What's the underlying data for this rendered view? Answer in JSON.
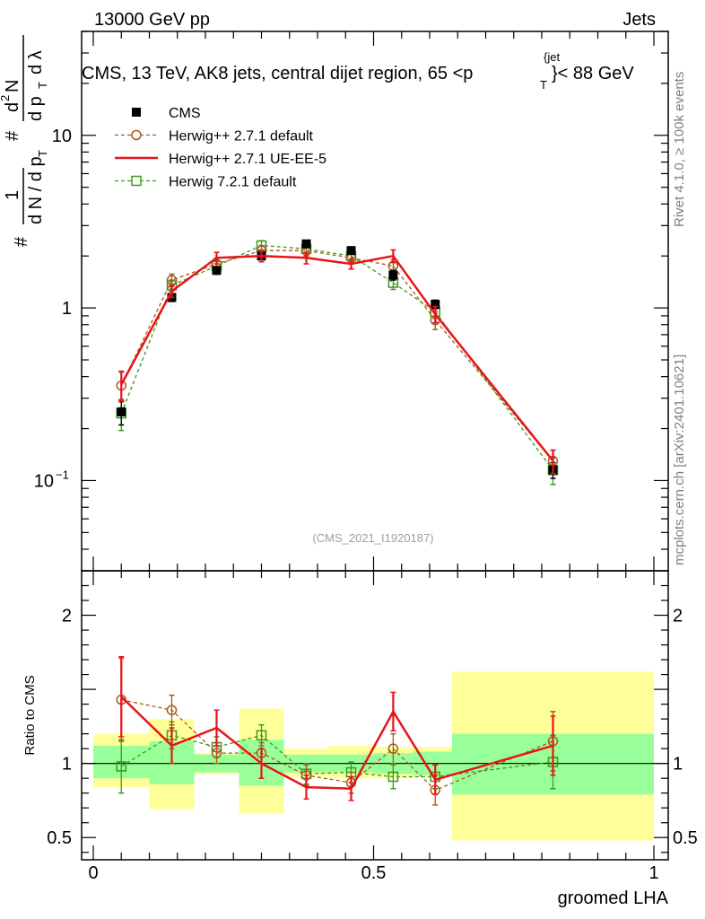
{
  "header": {
    "energy": "13000 GeV pp",
    "category": "Jets",
    "title_main": "CMS, 13 TeV, AK8 jets, central dijet region, 65 <p",
    "title_sub": "T",
    "title_sup": "{jet",
    "title_end": "}< 88 GeV",
    "analysis_id": "(CMS_2021_I1920187)"
  },
  "side_labels": {
    "rivet": "Rivet 4.1.0, ≥ 100k events",
    "mcplots": "mcplots.cern.ch [arXiv:2401.10621]"
  },
  "y_axis_label": {
    "hash": "#",
    "one": "1",
    "dN": "d N / d p",
    "dN_sub": "T",
    "d2": "d",
    "d2_sup": "2",
    "N": "N",
    "dpt": "d p",
    "dpt_sub": "T",
    "dlam": "d λ"
  },
  "chart_data": [
    {
      "type": "line",
      "panel": "main",
      "yscale": "log",
      "ylim": [
        0.03,
        40
      ],
      "xlim": [
        -0.02,
        1.0
      ],
      "yticks": [
        {
          "v": 0.1,
          "label": "10",
          "exp": "−1"
        },
        {
          "v": 1,
          "label": "1"
        },
        {
          "v": 10,
          "label": "10"
        }
      ],
      "x": [
        0.05,
        0.14,
        0.22,
        0.3,
        0.38,
        0.46,
        0.535,
        0.61,
        0.82
      ],
      "series": [
        {
          "name": "CMS",
          "style": "data",
          "color": "#000000",
          "values": [
            0.25,
            1.15,
            1.65,
            2.0,
            2.35,
            2.15,
            1.55,
            1.05,
            0.115
          ],
          "err": [
            0.04,
            0.06,
            0.08,
            0.09,
            0.1,
            0.1,
            0.1,
            0.06,
            0.012
          ]
        },
        {
          "name": "Herwig++ 2.7.1 default",
          "style": "circle-dash",
          "color": "#a65a1a",
          "values": [
            0.355,
            1.45,
            1.8,
            2.15,
            2.15,
            1.95,
            1.75,
            0.85,
            0.13
          ],
          "err": [
            0.07,
            0.12,
            0.15,
            0.15,
            0.15,
            0.15,
            0.15,
            0.1,
            0.02
          ]
        },
        {
          "name": "Herwig++ 2.7.1 UE-EE-5",
          "style": "solid",
          "color": "#e8141a",
          "values": [
            0.36,
            1.25,
            1.95,
            2.0,
            1.95,
            1.8,
            2.0,
            0.92,
            0.13
          ],
          "err": [
            0.07,
            0.1,
            0.15,
            0.15,
            0.15,
            0.12,
            0.17,
            0.1,
            0.02
          ]
        },
        {
          "name": "Herwig 7.2.1 default",
          "style": "square-dash",
          "color": "#3a9a1a",
          "values": [
            0.245,
            1.35,
            1.75,
            2.3,
            2.2,
            2.0,
            1.4,
            0.95,
            0.115
          ],
          "err": [
            0.05,
            0.1,
            0.12,
            0.15,
            0.15,
            0.13,
            0.12,
            0.08,
            0.02
          ]
        }
      ]
    },
    {
      "type": "line",
      "panel": "ratio",
      "ylabel": "Ratio to CMS",
      "xlabel": "groomed LHA",
      "ylim": [
        0.35,
        2.3
      ],
      "xlim": [
        -0.02,
        1.0
      ],
      "yticks": [
        {
          "v": 0.5,
          "label": "0.5"
        },
        {
          "v": 1,
          "label": "1"
        },
        {
          "v": 2,
          "label": "2"
        }
      ],
      "xticks": [
        {
          "v": 0,
          "label": "0"
        },
        {
          "v": 0.5,
          "label": "0.5"
        },
        {
          "v": 1,
          "label": "1"
        }
      ],
      "bins": [
        [
          0.0,
          0.1
        ],
        [
          0.1,
          0.18
        ],
        [
          0.18,
          0.26
        ],
        [
          0.26,
          0.34
        ],
        [
          0.34,
          0.42
        ],
        [
          0.42,
          0.5
        ],
        [
          0.5,
          0.57
        ],
        [
          0.57,
          0.64
        ],
        [
          0.64,
          1.0
        ]
      ],
      "band_green": [
        [
          0.9,
          1.12
        ],
        [
          0.86,
          1.15
        ],
        [
          0.94,
          1.06
        ],
        [
          0.85,
          1.16
        ],
        [
          0.94,
          1.06
        ],
        [
          0.94,
          1.06
        ],
        [
          0.93,
          1.07
        ],
        [
          0.92,
          1.08
        ],
        [
          0.79,
          1.2
        ]
      ],
      "band_yellow": [
        [
          0.84,
          1.2
        ],
        [
          0.69,
          1.3
        ],
        [
          0.93,
          1.07
        ],
        [
          0.66,
          1.37
        ],
        [
          0.91,
          1.1
        ],
        [
          0.9,
          1.12
        ],
        [
          0.9,
          1.11
        ],
        [
          0.91,
          1.11
        ],
        [
          0.48,
          1.62
        ]
      ],
      "x": [
        0.05,
        0.14,
        0.22,
        0.3,
        0.38,
        0.46,
        0.535,
        0.61,
        0.82
      ],
      "series": [
        {
          "name": "Herwig++ 2.7.1 default",
          "style": "circle-dash",
          "color": "#a65a1a",
          "values": [
            1.43,
            1.36,
            1.07,
            1.07,
            0.92,
            0.87,
            1.1,
            0.82,
            1.15
          ],
          "err": [
            0.28,
            0.1,
            0.07,
            0.07,
            0.07,
            0.07,
            0.1,
            0.1,
            0.2
          ]
        },
        {
          "name": "Herwig++ 2.7.1 UE-EE-5",
          "style": "solid",
          "color": "#e8141a",
          "values": [
            1.45,
            1.12,
            1.24,
            1.0,
            0.84,
            0.83,
            1.35,
            0.89,
            1.12
          ],
          "err": [
            0.27,
            0.12,
            0.12,
            0.1,
            0.08,
            0.08,
            0.13,
            0.1,
            0.2
          ]
        },
        {
          "name": "Herwig 7.2.1 default",
          "style": "square-dash",
          "color": "#3a9a1a",
          "values": [
            0.98,
            1.19,
            1.11,
            1.19,
            0.93,
            0.94,
            0.91,
            0.91,
            1.01
          ],
          "err": [
            0.18,
            0.09,
            0.07,
            0.07,
            0.07,
            0.07,
            0.08,
            0.08,
            0.18
          ]
        }
      ]
    }
  ],
  "colors": {
    "green_band": "#99ff99",
    "yellow_band": "#ffff99",
    "axis": "#000000"
  }
}
